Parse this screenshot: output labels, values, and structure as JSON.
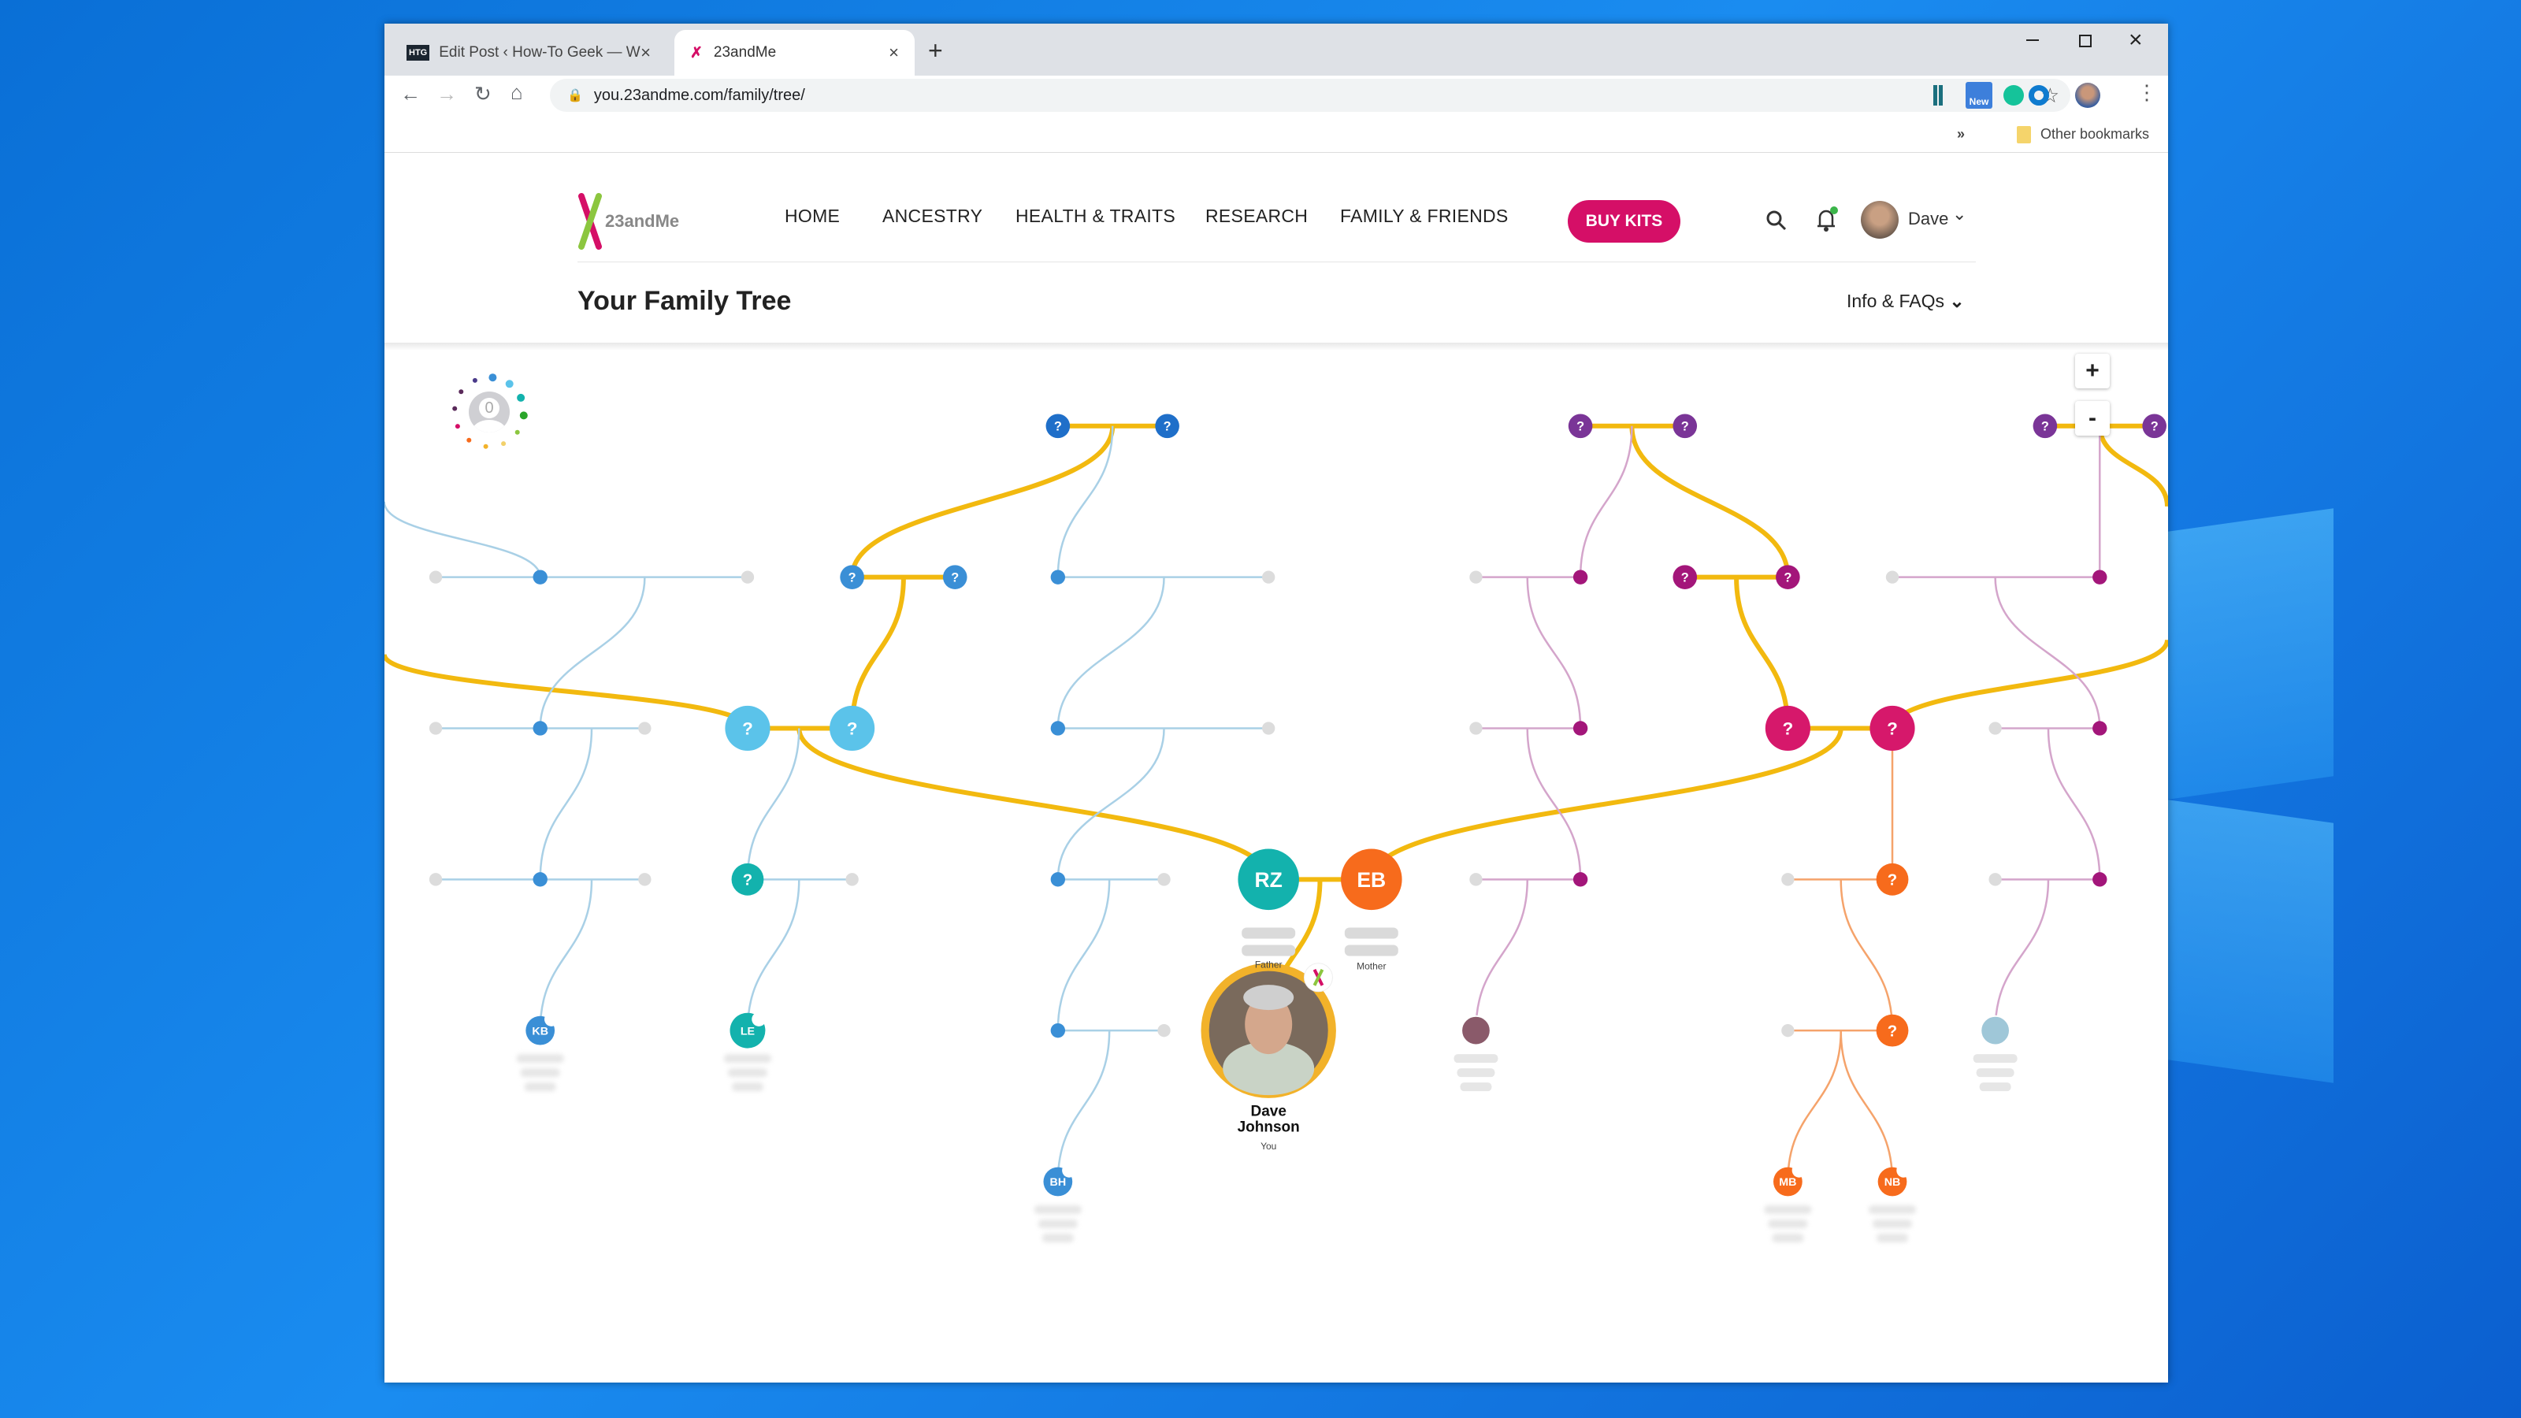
{
  "browser": {
    "tabs": [
      {
        "label": "Edit Post ‹ How-To Geek — WordPress",
        "favicon": "HTG",
        "active": false
      },
      {
        "label": "23andMe",
        "active": true
      }
    ],
    "close_glyph": "×",
    "new_tab_glyph": "+",
    "url": "you.23andme.com/family/tree/",
    "extension_badge": "New",
    "bookmarks_overflow": "»",
    "other_bookmarks": "Other bookmarks",
    "window_controls": [
      "minimize",
      "maximize",
      "close"
    ]
  },
  "site": {
    "logo_text": "23andMe",
    "nav": [
      "HOME",
      "ANCESTRY",
      "HEALTH & TRAITS",
      "RESEARCH",
      "FAMILY & FRIENDS"
    ],
    "buy_kits": "BUY KITS",
    "user_name": "Dave",
    "page_title": "Your Family Tree",
    "info_faqs": "Info & FAQs",
    "zoom_in": "+",
    "zoom_out": "-",
    "dna_match_count": "0"
  },
  "tree": {
    "unknown_label": "?",
    "father": {
      "initials": "RZ",
      "relation": "Father",
      "color": "#13b2ad"
    },
    "mother": {
      "initials": "EB",
      "relation": "Mother",
      "color": "#f76b1c"
    },
    "you": {
      "first": "Dave",
      "last": "Johnson",
      "relation": "You"
    },
    "relatives": [
      {
        "initials": "KB"
      },
      {
        "initials": "LE"
      },
      {
        "initials": "BH"
      },
      {
        "initials": "MB"
      },
      {
        "initials": "NB"
      }
    ],
    "colors": {
      "direct_line": "#f2b90f",
      "paternal": "#3a8fd6",
      "maternal": "#d6186b",
      "orange": "#f76b1c",
      "purple": "#7a3597",
      "teal": "#13b2ad",
      "light_blue": "#5bc3ea",
      "unknown_dot": "#dcdcdc"
    }
  }
}
